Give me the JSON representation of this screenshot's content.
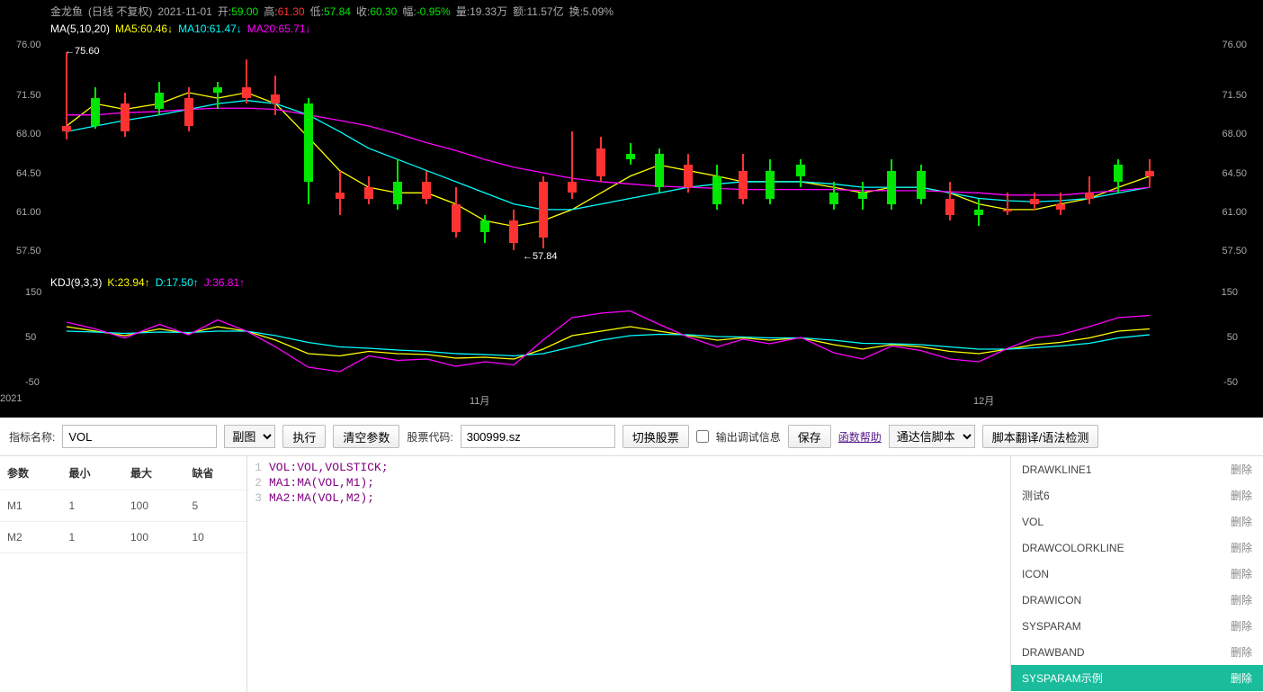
{
  "header": {
    "stock_name": "金龙鱼",
    "meta": "(日线 不复权)",
    "date": "2021-11-01",
    "open_label": "开:",
    "open": "59.00",
    "high_label": "高:",
    "high": "61.30",
    "low_label": "低:",
    "low": "57.84",
    "close_label": "收:",
    "close": "60.30",
    "change_label": "幅:",
    "change": "-0.95%",
    "vol_label": "量:",
    "vol": "19.33万",
    "amount_label": "额:",
    "amount": "11.57亿",
    "turnover_label": "换:",
    "turnover": "5.09%"
  },
  "ma": {
    "label": "MA(5,10,20)",
    "ma5_label": "MA5:",
    "ma5": "60.46",
    "ma5_color": "#FFFF00",
    "ma10_label": "MA10:",
    "ma10": "61.47",
    "ma10_color": "#00FFFF",
    "ma20_label": "MA20:",
    "ma20": "65.71",
    "ma20_color": "#FF00FF"
  },
  "price_axis": {
    "left_ticks": [
      "76.00",
      "71.50",
      "68.00",
      "64.50",
      "61.00",
      "57.50"
    ],
    "right_ticks": [
      "76.00",
      "71.50",
      "68.00",
      "64.50",
      "61.00",
      "57.50"
    ]
  },
  "annotations": {
    "high": "←75.60",
    "low": "←57.84"
  },
  "candles": [
    {
      "x": 0.01,
      "o": 68.5,
      "h": 75.6,
      "l": 67.8,
      "c": 69.0,
      "up": true
    },
    {
      "x": 0.035,
      "o": 69.0,
      "h": 72.5,
      "l": 68.8,
      "c": 71.5,
      "up": false
    },
    {
      "x": 0.06,
      "o": 71.0,
      "h": 72.0,
      "l": 68.0,
      "c": 68.5,
      "up": true
    },
    {
      "x": 0.09,
      "o": 70.5,
      "h": 73.0,
      "l": 70.0,
      "c": 72.0,
      "up": false
    },
    {
      "x": 0.115,
      "o": 71.5,
      "h": 72.5,
      "l": 68.5,
      "c": 69.0,
      "up": true
    },
    {
      "x": 0.14,
      "o": 72.0,
      "h": 73.0,
      "l": 70.5,
      "c": 72.5,
      "up": false
    },
    {
      "x": 0.165,
      "o": 72.5,
      "h": 75.0,
      "l": 71.0,
      "c": 71.5,
      "up": true
    },
    {
      "x": 0.19,
      "o": 71.8,
      "h": 73.5,
      "l": 70.0,
      "c": 71.0,
      "up": true
    },
    {
      "x": 0.218,
      "o": 71.0,
      "h": 71.5,
      "l": 62.0,
      "c": 64.0,
      "up": false
    },
    {
      "x": 0.245,
      "o": 63.0,
      "h": 65.0,
      "l": 61.0,
      "c": 62.5,
      "up": true
    },
    {
      "x": 0.27,
      "o": 62.5,
      "h": 64.5,
      "l": 62.0,
      "c": 63.5,
      "up": true
    },
    {
      "x": 0.295,
      "o": 64.0,
      "h": 66.0,
      "l": 61.5,
      "c": 62.0,
      "up": false
    },
    {
      "x": 0.32,
      "o": 64.0,
      "h": 65.0,
      "l": 62.0,
      "c": 62.5,
      "up": true
    },
    {
      "x": 0.345,
      "o": 62.0,
      "h": 63.5,
      "l": 59.0,
      "c": 59.5,
      "up": true
    },
    {
      "x": 0.37,
      "o": 59.5,
      "h": 61.0,
      "l": 58.5,
      "c": 60.5,
      "up": false
    },
    {
      "x": 0.395,
      "o": 60.5,
      "h": 61.5,
      "l": 57.84,
      "c": 58.5,
      "up": true
    },
    {
      "x": 0.42,
      "o": 59.0,
      "h": 64.5,
      "l": 58.0,
      "c": 64.0,
      "up": true
    },
    {
      "x": 0.445,
      "o": 64.0,
      "h": 68.5,
      "l": 62.5,
      "c": 63.0,
      "up": true
    },
    {
      "x": 0.47,
      "o": 67.0,
      "h": 68.0,
      "l": 64.0,
      "c": 64.5,
      "up": true
    },
    {
      "x": 0.495,
      "o": 66.0,
      "h": 67.5,
      "l": 65.5,
      "c": 66.5,
      "up": false
    },
    {
      "x": 0.52,
      "o": 66.5,
      "h": 67.0,
      "l": 63.0,
      "c": 63.5,
      "up": false
    },
    {
      "x": 0.545,
      "o": 63.5,
      "h": 66.5,
      "l": 63.0,
      "c": 65.5,
      "up": true
    },
    {
      "x": 0.57,
      "o": 64.5,
      "h": 65.5,
      "l": 61.5,
      "c": 62.0,
      "up": false
    },
    {
      "x": 0.592,
      "o": 62.5,
      "h": 66.5,
      "l": 62.0,
      "c": 65.0,
      "up": true
    },
    {
      "x": 0.615,
      "o": 65.0,
      "h": 66.0,
      "l": 62.0,
      "c": 62.5,
      "up": false
    },
    {
      "x": 0.642,
      "o": 64.5,
      "h": 66.0,
      "l": 63.5,
      "c": 65.5,
      "up": false
    },
    {
      "x": 0.67,
      "o": 63.0,
      "h": 64.0,
      "l": 61.5,
      "c": 62.0,
      "up": false
    },
    {
      "x": 0.695,
      "o": 63.0,
      "h": 64.0,
      "l": 61.5,
      "c": 62.5,
      "up": false
    },
    {
      "x": 0.72,
      "o": 62.0,
      "h": 66.0,
      "l": 61.5,
      "c": 65.0,
      "up": false
    },
    {
      "x": 0.745,
      "o": 65.0,
      "h": 65.5,
      "l": 62.0,
      "c": 62.5,
      "up": false
    },
    {
      "x": 0.77,
      "o": 62.5,
      "h": 64.0,
      "l": 60.5,
      "c": 61.0,
      "up": true
    },
    {
      "x": 0.795,
      "o": 61.0,
      "h": 62.5,
      "l": 60.0,
      "c": 61.5,
      "up": false
    },
    {
      "x": 0.82,
      "o": 61.5,
      "h": 63.0,
      "l": 61.0,
      "c": 61.5,
      "up": true
    },
    {
      "x": 0.843,
      "o": 62.0,
      "h": 63.0,
      "l": 61.5,
      "c": 62.5,
      "up": true
    },
    {
      "x": 0.865,
      "o": 62.0,
      "h": 63.0,
      "l": 61.0,
      "c": 61.5,
      "up": true
    },
    {
      "x": 0.89,
      "o": 63.0,
      "h": 64.5,
      "l": 62.0,
      "c": 62.5,
      "up": true
    },
    {
      "x": 0.915,
      "o": 64.0,
      "h": 66.0,
      "l": 63.0,
      "c": 65.5,
      "up": false
    },
    {
      "x": 0.942,
      "o": 64.5,
      "h": 66.0,
      "l": 63.5,
      "c": 65.0,
      "up": true
    }
  ],
  "ma_lines": {
    "ma5": [
      69,
      71,
      70.5,
      71,
      72,
      71.5,
      72,
      71,
      68,
      65,
      63.5,
      63,
      63,
      62,
      60.5,
      60,
      60.5,
      61.5,
      63,
      64.5,
      65.5,
      65,
      64.5,
      64,
      64,
      64,
      63.5,
      63,
      63.5,
      63.5,
      63,
      62,
      61.5,
      61.5,
      62,
      62.5,
      63.5,
      64.5
    ],
    "ma10": [
      68.5,
      69,
      69.5,
      70,
      70.5,
      71,
      71.3,
      71,
      70,
      68.5,
      67,
      66,
      65,
      64,
      63,
      62,
      61.5,
      61.5,
      62,
      62.5,
      63,
      63.5,
      63.8,
      64,
      64,
      64,
      63.8,
      63.5,
      63.5,
      63.5,
      63,
      62.5,
      62.3,
      62.2,
      62.3,
      62.5,
      63,
      63.5
    ],
    "ma20": [
      70,
      70,
      70.2,
      70.3,
      70.5,
      70.6,
      70.6,
      70.5,
      70,
      69.5,
      69,
      68.3,
      67.5,
      66.8,
      66,
      65.3,
      64.8,
      64.3,
      64,
      63.8,
      63.6,
      63.5,
      63.4,
      63.3,
      63.3,
      63.3,
      63.3,
      63.2,
      63.2,
      63.2,
      63.1,
      63,
      62.8,
      62.8,
      62.8,
      63,
      63.2,
      63.5
    ]
  },
  "kdj": {
    "label": "KDJ(9,3,3)",
    "k_label": "K:",
    "k": "23.94",
    "d_label": "D:",
    "d": "17.50",
    "j_label": "J:",
    "j": "36.81",
    "axis": [
      "150",
      "50",
      "-50"
    ],
    "axis_right": [
      "150",
      "50",
      "-50"
    ],
    "k_line": [
      80,
      70,
      60,
      75,
      65,
      80,
      70,
      50,
      20,
      15,
      25,
      20,
      18,
      10,
      12,
      8,
      30,
      60,
      70,
      80,
      70,
      60,
      50,
      55,
      50,
      55,
      40,
      30,
      40,
      35,
      25,
      20,
      30,
      40,
      45,
      55,
      70,
      75
    ],
    "d_line": [
      70,
      68,
      65,
      68,
      67,
      70,
      70,
      60,
      45,
      35,
      32,
      28,
      25,
      20,
      18,
      15,
      20,
      35,
      50,
      60,
      63,
      62,
      58,
      57,
      55,
      55,
      50,
      43,
      42,
      40,
      35,
      30,
      30,
      33,
      37,
      43,
      55,
      62
    ],
    "j_line": [
      90,
      75,
      55,
      85,
      62,
      95,
      70,
      35,
      -10,
      -20,
      15,
      5,
      8,
      -8,
      2,
      -5,
      50,
      100,
      110,
      115,
      85,
      57,
      35,
      52,
      42,
      56,
      22,
      8,
      37,
      27,
      8,
      2,
      32,
      55,
      62,
      80,
      100,
      105
    ]
  },
  "time_axis": {
    "t1": "2021",
    "t2": "11月",
    "t3": "12月"
  },
  "toolbar": {
    "indicator_label": "指标名称:",
    "indicator_value": "VOL",
    "subplot_label": "副图",
    "execute": "执行",
    "clear": "清空参数",
    "stock_label": "股票代码:",
    "stock_value": "300999.sz",
    "switch_stock": "切换股票",
    "debug_label": "输出调试信息",
    "save": "保存",
    "help": "函数帮助",
    "script_type": "通达信脚本",
    "translate": "脚本翻译/语法检测"
  },
  "params": {
    "headers": [
      "参数",
      "最小",
      "最大",
      "缺省"
    ],
    "rows": [
      [
        "M1",
        "1",
        "100",
        "5"
      ],
      [
        "M2",
        "1",
        "100",
        "10"
      ]
    ]
  },
  "code": [
    {
      "n": "1",
      "text": "VOL:VOL,VOLSTICK;"
    },
    {
      "n": "2",
      "text": "MA1:MA(VOL,M1);"
    },
    {
      "n": "3",
      "text": "MA2:MA(VOL,M2);"
    }
  ],
  "indicators": [
    {
      "name": "DRAWKLINE1",
      "del": "删除"
    },
    {
      "name": "测试6",
      "del": "删除"
    },
    {
      "name": "VOL",
      "del": "删除"
    },
    {
      "name": "DRAWCOLORKLINE",
      "del": "删除"
    },
    {
      "name": "ICON",
      "del": "删除"
    },
    {
      "name": "DRAWICON",
      "del": "删除"
    },
    {
      "name": "SYSPARAM",
      "del": "删除"
    },
    {
      "name": "DRAWBAND",
      "del": "删除"
    },
    {
      "name": "SYSPARAM示例",
      "del": "删除",
      "selected": true
    }
  ]
}
